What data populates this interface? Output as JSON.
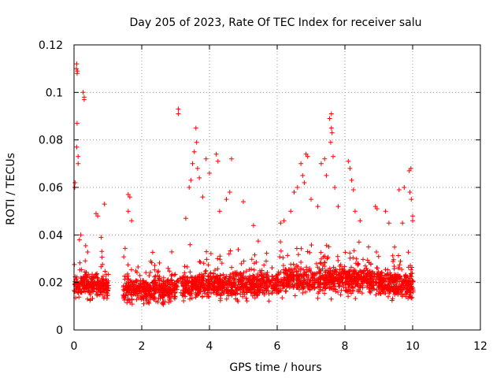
{
  "chart_data": {
    "type": "scatter",
    "title": "Day 205 of 2023, Rate Of TEC Index for receiver salu",
    "xlabel": "GPS time / hours",
    "ylabel": "ROTI / TECUs",
    "xlim": [
      0,
      12
    ],
    "ylim": [
      0,
      0.12
    ],
    "x_ticks": [
      0,
      2,
      4,
      6,
      8,
      10,
      12
    ],
    "y_ticks": [
      0,
      0.02,
      0.04,
      0.06,
      0.08,
      0.1,
      0.12
    ],
    "x_tick_labels": [
      "0",
      "2",
      "4",
      "6",
      "8",
      "10",
      "12"
    ],
    "y_tick_labels": [
      "0",
      "0.02",
      "0.04",
      "0.06",
      "0.08",
      "0.1",
      "0.12"
    ],
    "grid": true,
    "marker": "+",
    "series": [
      {
        "name": "ROTI",
        "color": "#ff0000",
        "note": "dense cloud of ~0.008-0.035 TECU/min samples from 0 to 10 h with sparse outliers",
        "outliers": [
          [
            0.02,
            0.06
          ],
          [
            0.03,
            0.062
          ],
          [
            0.07,
            0.11
          ],
          [
            0.08,
            0.112
          ],
          [
            0.09,
            0.108
          ],
          [
            0.1,
            0.109
          ],
          [
            0.09,
            0.087
          ],
          [
            0.08,
            0.077
          ],
          [
            0.12,
            0.073
          ],
          [
            0.12,
            0.07
          ],
          [
            0.27,
            0.1
          ],
          [
            0.3,
            0.098
          ],
          [
            0.3,
            0.097
          ],
          [
            0.16,
            0.038
          ],
          [
            0.2,
            0.04
          ],
          [
            0.65,
            0.049
          ],
          [
            0.7,
            0.048
          ],
          [
            0.8,
            0.039
          ],
          [
            0.9,
            0.053
          ],
          [
            1.6,
            0.057
          ],
          [
            1.65,
            0.056
          ],
          [
            1.6,
            0.05
          ],
          [
            1.7,
            0.046
          ],
          [
            3.08,
            0.093
          ],
          [
            3.08,
            0.091
          ],
          [
            3.3,
            0.047
          ],
          [
            3.5,
            0.07
          ],
          [
            3.55,
            0.075
          ],
          [
            3.6,
            0.085
          ],
          [
            3.62,
            0.079
          ],
          [
            3.65,
            0.068
          ],
          [
            3.45,
            0.063
          ],
          [
            3.4,
            0.06
          ],
          [
            3.7,
            0.064
          ],
          [
            3.8,
            0.056
          ],
          [
            3.9,
            0.072
          ],
          [
            4.0,
            0.066
          ],
          [
            4.2,
            0.074
          ],
          [
            4.25,
            0.071
          ],
          [
            4.3,
            0.05
          ],
          [
            4.65,
            0.072
          ],
          [
            4.6,
            0.058
          ],
          [
            4.5,
            0.055
          ],
          [
            5.0,
            0.054
          ],
          [
            5.3,
            0.044
          ],
          [
            6.1,
            0.045
          ],
          [
            6.2,
            0.046
          ],
          [
            6.4,
            0.05
          ],
          [
            6.5,
            0.058
          ],
          [
            6.6,
            0.06
          ],
          [
            6.7,
            0.07
          ],
          [
            6.75,
            0.065
          ],
          [
            6.8,
            0.062
          ],
          [
            6.85,
            0.074
          ],
          [
            6.9,
            0.073
          ],
          [
            7.0,
            0.055
          ],
          [
            7.2,
            0.052
          ],
          [
            7.3,
            0.07
          ],
          [
            7.4,
            0.072
          ],
          [
            7.45,
            0.065
          ],
          [
            7.55,
            0.089
          ],
          [
            7.6,
            0.091
          ],
          [
            7.6,
            0.085
          ],
          [
            7.62,
            0.083
          ],
          [
            7.58,
            0.079
          ],
          [
            7.65,
            0.073
          ],
          [
            7.7,
            0.06
          ],
          [
            7.8,
            0.052
          ],
          [
            8.1,
            0.071
          ],
          [
            8.15,
            0.068
          ],
          [
            8.2,
            0.063
          ],
          [
            8.25,
            0.059
          ],
          [
            8.3,
            0.05
          ],
          [
            8.45,
            0.046
          ],
          [
            8.9,
            0.052
          ],
          [
            8.95,
            0.051
          ],
          [
            9.2,
            0.05
          ],
          [
            9.3,
            0.045
          ],
          [
            9.6,
            0.059
          ],
          [
            9.75,
            0.06
          ],
          [
            9.9,
            0.067
          ],
          [
            9.95,
            0.068
          ],
          [
            9.92,
            0.058
          ],
          [
            9.96,
            0.055
          ],
          [
            10.0,
            0.046
          ],
          [
            10.0,
            0.048
          ],
          [
            9.7,
            0.045
          ]
        ]
      }
    ]
  }
}
